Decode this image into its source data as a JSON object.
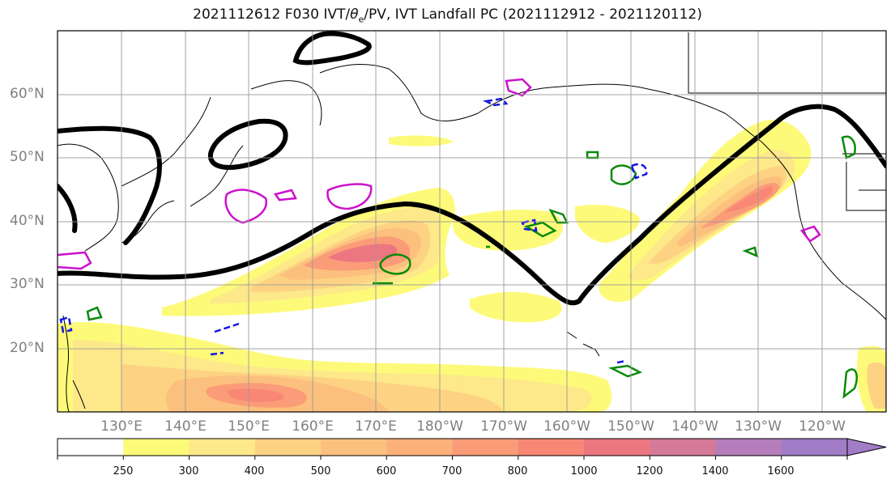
{
  "title": {
    "prefix": "2021112612 F030 IVT/",
    "theta": "θ",
    "theta_sub": "e",
    "suffix": "/PV, IVT Landfall PC (2021112912 - 2021120112)"
  },
  "lat_labels": [
    "60°N",
    "50°N",
    "40°N",
    "30°N",
    "20°N"
  ],
  "lon_labels": [
    "130°E",
    "140°E",
    "150°E",
    "160°E",
    "170°E",
    "180°W",
    "170°W",
    "160°W",
    "150°W",
    "140°W",
    "130°W",
    "120°W"
  ],
  "colorbar": {
    "ticks": [
      "250",
      "300",
      "400",
      "500",
      "600",
      "700",
      "800",
      "1000",
      "1200",
      "1400",
      "1600"
    ],
    "colors": [
      "#ffffff",
      "#fdfa7a",
      "#fde88a",
      "#fdd283",
      "#fcc07e",
      "#fcb07a",
      "#fb9c78",
      "#f88776",
      "#ec7781",
      "#d47a98",
      "#b57dbb",
      "#a17cc7"
    ]
  },
  "contour_colors": {
    "ivt_landfall_pc": "#000000",
    "pv_green": "#0a8a0a",
    "pv_magenta": "#cc11cc",
    "pv_blue": "#1414e6",
    "coastline": "#000000"
  }
}
